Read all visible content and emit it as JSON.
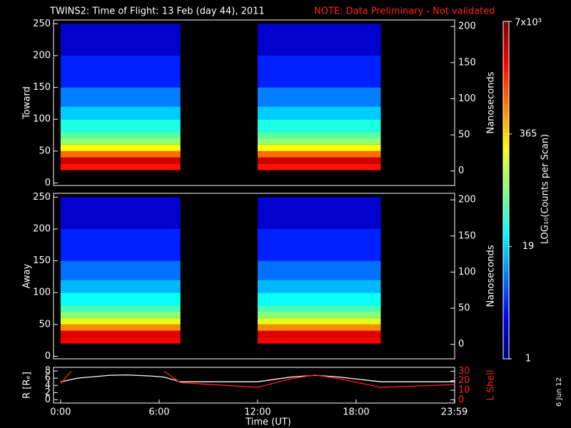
{
  "header": {
    "title": "TWINS2: Time of Flight: 13 Feb (day  44), 2011",
    "note": "NOTE: Data Preliminary - Not validated"
  },
  "colorbar": {
    "label": "LOG₁₀(Counts per Scan)",
    "lim": [
      1,
      7000
    ],
    "log": true,
    "ticks": [
      1,
      19,
      365,
      {
        "value": 7000,
        "label": "7x10³"
      }
    ]
  },
  "footer_date": "6 Jun 12",
  "chart_data": [
    {
      "type": "heatmap",
      "ylabel": "Toward",
      "y2label": "Nanoseconds",
      "xlim": [
        -0.43,
        24
      ],
      "ylim": [
        -4,
        256
      ],
      "yticks": [
        0,
        50,
        100,
        150,
        200,
        250
      ],
      "y2lim": [
        -20,
        209
      ],
      "y2ticks": [
        0,
        50,
        100,
        150,
        200
      ],
      "intervals": [
        [
          0,
          7.3
        ],
        [
          12,
          19.5
        ]
      ],
      "channels": [
        20,
        30,
        40,
        50,
        60,
        70,
        80,
        100,
        120,
        150,
        200,
        250
      ],
      "counts": [
        2000,
        3500,
        900,
        250,
        100,
        60,
        35,
        18,
        9,
        4,
        2
      ]
    },
    {
      "type": "heatmap",
      "ylabel": "Away",
      "y2label": "Nanoseconds",
      "xlim": [
        -0.43,
        24
      ],
      "ylim": [
        -4,
        256
      ],
      "yticks": [
        0,
        50,
        100,
        150,
        200,
        250
      ],
      "y2lim": [
        -20,
        209
      ],
      "y2ticks": [
        0,
        50,
        100,
        150,
        200
      ],
      "intervals": [
        [
          0,
          7.3
        ],
        [
          12,
          19.5
        ]
      ],
      "channels": [
        20,
        30,
        40,
        50,
        60,
        70,
        80,
        100,
        120,
        150,
        200,
        250
      ],
      "counts": [
        2500,
        3000,
        700,
        200,
        90,
        50,
        30,
        15,
        8,
        4,
        2
      ]
    },
    {
      "type": "line",
      "xlabel": "Time (UT)",
      "ylabel": "R [Rₑ]",
      "y2label": "L Shell",
      "xlim": [
        -0.43,
        24
      ],
      "xticks": [
        {
          "value": 0,
          "label": "0:00"
        },
        {
          "value": 6,
          "label": "6:00"
        },
        {
          "value": 12,
          "label": "12:00"
        },
        {
          "value": 18,
          "label": "18:00"
        },
        {
          "value": 23.98,
          "label": "23:59"
        }
      ],
      "ylim": [
        -0.9,
        9
      ],
      "yticks": [
        0,
        2,
        4,
        6,
        8
      ],
      "y2lim": [
        -3.4,
        34
      ],
      "y2ticks": [
        0,
        10,
        20,
        30
      ],
      "x": [
        0,
        0.65,
        1,
        3,
        4,
        5.5,
        6.3,
        7.3,
        12,
        14,
        15.5,
        17,
        19.5,
        24
      ],
      "series": [
        {
          "name": "R",
          "color": "#ffffff",
          "values": [
            5,
            5.6,
            6,
            6.8,
            6.9,
            6.6,
            6.3,
            5,
            5,
            6.3,
            6.8,
            6.3,
            5,
            5
          ]
        },
        {
          "name": "L Shell",
          "color": "#ff2020",
          "axis": "y2",
          "values": [
            17,
            30,
            null,
            null,
            null,
            null,
            30,
            18,
            13,
            22,
            26,
            22,
            13,
            16
          ]
        }
      ]
    }
  ]
}
